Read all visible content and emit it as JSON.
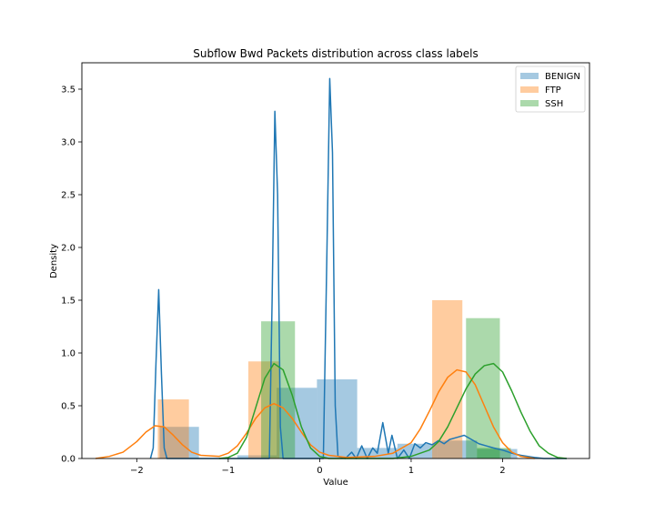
{
  "chart_data": {
    "type": "bar",
    "title": "Subflow Bwd Packets distribution across class labels",
    "xlabel": "Value",
    "ylabel": "Density",
    "xlim": [
      -2.6,
      2.95
    ],
    "ylim": [
      0,
      3.75
    ],
    "xticks": [
      -2,
      -1,
      0,
      1,
      2
    ],
    "xtick_labels": [
      "−2",
      "−1",
      "0",
      "1",
      "2"
    ],
    "yticks": [
      0,
      0.5,
      1.0,
      1.5,
      2.0,
      2.5,
      3.0,
      3.5
    ],
    "ytick_labels": [
      "0.0",
      "0.5",
      "1.0",
      "1.5",
      "2.0",
      "2.5",
      "3.0",
      "3.5"
    ],
    "grid": false,
    "legend_position": "top-right",
    "series": [
      {
        "name": "BENIGN",
        "color": "#1f77b4",
        "histogram": [
          {
            "x0": -1.75,
            "x1": -1.32,
            "value": 0.3
          },
          {
            "x0": -0.9,
            "x1": -0.47,
            "value": 0.03
          },
          {
            "x0": -0.47,
            "x1": -0.03,
            "value": 0.67
          },
          {
            "x0": -0.03,
            "x1": 0.41,
            "value": 0.75
          },
          {
            "x0": 0.41,
            "x1": 0.85,
            "value": 0.1
          },
          {
            "x0": 0.85,
            "x1": 1.28,
            "value": 0.14
          },
          {
            "x0": 1.28,
            "x1": 1.72,
            "value": 0.17
          },
          {
            "x0": 1.72,
            "x1": 2.16,
            "value": 0.09
          }
        ],
        "kde": [
          [
            -1.85,
            0.0
          ],
          [
            -1.82,
            0.1
          ],
          [
            -1.79,
            0.9
          ],
          [
            -1.76,
            1.6
          ],
          [
            -1.73,
            0.8
          ],
          [
            -1.7,
            0.1
          ],
          [
            -1.67,
            0.0
          ],
          [
            -0.55,
            0.0
          ],
          [
            -0.52,
            1.5
          ],
          [
            -0.49,
            3.29
          ],
          [
            -0.46,
            2.5
          ],
          [
            -0.43,
            0.3
          ],
          [
            -0.4,
            0.0
          ],
          [
            0.04,
            0.0
          ],
          [
            0.08,
            2.0
          ],
          [
            0.11,
            3.6
          ],
          [
            0.14,
            2.9
          ],
          [
            0.17,
            0.5
          ],
          [
            0.2,
            0.02
          ],
          [
            0.28,
            0.0
          ],
          [
            0.35,
            0.06
          ],
          [
            0.4,
            0.0
          ],
          [
            0.46,
            0.12
          ],
          [
            0.52,
            0.0
          ],
          [
            0.58,
            0.1
          ],
          [
            0.63,
            0.05
          ],
          [
            0.69,
            0.34
          ],
          [
            0.75,
            0.05
          ],
          [
            0.79,
            0.22
          ],
          [
            0.85,
            0.0
          ],
          [
            0.92,
            0.08
          ],
          [
            0.98,
            0.0
          ],
          [
            1.04,
            0.14
          ],
          [
            1.1,
            0.1
          ],
          [
            1.16,
            0.15
          ],
          [
            1.23,
            0.13
          ],
          [
            1.3,
            0.17
          ],
          [
            1.36,
            0.14
          ],
          [
            1.42,
            0.18
          ],
          [
            1.5,
            0.2
          ],
          [
            1.58,
            0.22
          ],
          [
            1.66,
            0.18
          ],
          [
            1.74,
            0.14
          ],
          [
            1.82,
            0.12
          ],
          [
            1.9,
            0.1
          ],
          [
            2.0,
            0.08
          ],
          [
            2.1,
            0.05
          ],
          [
            2.2,
            0.03
          ],
          [
            2.35,
            0.01
          ],
          [
            2.45,
            0.0
          ],
          [
            2.7,
            0.0
          ]
        ]
      },
      {
        "name": "FTP",
        "color": "#ff7f0e",
        "histogram": [
          {
            "x0": -1.77,
            "x1": -1.43,
            "value": 0.56
          },
          {
            "x0": -0.78,
            "x1": -0.44,
            "value": 0.92
          },
          {
            "x0": 1.23,
            "x1": 1.56,
            "value": 1.5
          }
        ],
        "kde": [
          [
            -2.45,
            0.0
          ],
          [
            -2.3,
            0.02
          ],
          [
            -2.15,
            0.06
          ],
          [
            -2.0,
            0.16
          ],
          [
            -1.9,
            0.25
          ],
          [
            -1.8,
            0.31
          ],
          [
            -1.7,
            0.3
          ],
          [
            -1.6,
            0.22
          ],
          [
            -1.5,
            0.13
          ],
          [
            -1.4,
            0.06
          ],
          [
            -1.3,
            0.03
          ],
          [
            -1.1,
            0.02
          ],
          [
            -1.0,
            0.05
          ],
          [
            -0.9,
            0.12
          ],
          [
            -0.8,
            0.24
          ],
          [
            -0.7,
            0.38
          ],
          [
            -0.6,
            0.48
          ],
          [
            -0.5,
            0.52
          ],
          [
            -0.4,
            0.48
          ],
          [
            -0.3,
            0.38
          ],
          [
            -0.2,
            0.25
          ],
          [
            -0.1,
            0.13
          ],
          [
            0.0,
            0.06
          ],
          [
            0.1,
            0.03
          ],
          [
            0.3,
            0.01
          ],
          [
            0.6,
            0.02
          ],
          [
            0.8,
            0.05
          ],
          [
            1.0,
            0.15
          ],
          [
            1.1,
            0.28
          ],
          [
            1.2,
            0.45
          ],
          [
            1.3,
            0.63
          ],
          [
            1.4,
            0.77
          ],
          [
            1.5,
            0.84
          ],
          [
            1.6,
            0.82
          ],
          [
            1.7,
            0.7
          ],
          [
            1.8,
            0.5
          ],
          [
            1.9,
            0.3
          ],
          [
            2.0,
            0.15
          ],
          [
            2.1,
            0.06
          ],
          [
            2.2,
            0.02
          ],
          [
            2.35,
            0.0
          ]
        ]
      },
      {
        "name": "SSH",
        "color": "#2ca02c",
        "histogram": [
          {
            "x0": -0.64,
            "x1": -0.27,
            "value": 1.3
          },
          {
            "x0": 1.6,
            "x1": 1.97,
            "value": 1.33
          },
          {
            "x0": 1.72,
            "x1": 2.09,
            "value": 0.1
          }
        ],
        "kde": [
          [
            -1.1,
            0.0
          ],
          [
            -1.0,
            0.01
          ],
          [
            -0.9,
            0.05
          ],
          [
            -0.8,
            0.2
          ],
          [
            -0.7,
            0.48
          ],
          [
            -0.6,
            0.76
          ],
          [
            -0.5,
            0.9
          ],
          [
            -0.4,
            0.84
          ],
          [
            -0.3,
            0.6
          ],
          [
            -0.2,
            0.3
          ],
          [
            -0.1,
            0.1
          ],
          [
            0.0,
            0.02
          ],
          [
            0.1,
            0.0
          ],
          [
            0.8,
            0.0
          ],
          [
            1.0,
            0.02
          ],
          [
            1.2,
            0.08
          ],
          [
            1.3,
            0.16
          ],
          [
            1.4,
            0.3
          ],
          [
            1.5,
            0.48
          ],
          [
            1.6,
            0.66
          ],
          [
            1.7,
            0.8
          ],
          [
            1.8,
            0.88
          ],
          [
            1.9,
            0.9
          ],
          [
            2.0,
            0.82
          ],
          [
            2.1,
            0.64
          ],
          [
            2.2,
            0.44
          ],
          [
            2.3,
            0.26
          ],
          [
            2.4,
            0.12
          ],
          [
            2.5,
            0.05
          ],
          [
            2.6,
            0.01
          ],
          [
            2.7,
            0.0
          ]
        ]
      }
    ]
  }
}
